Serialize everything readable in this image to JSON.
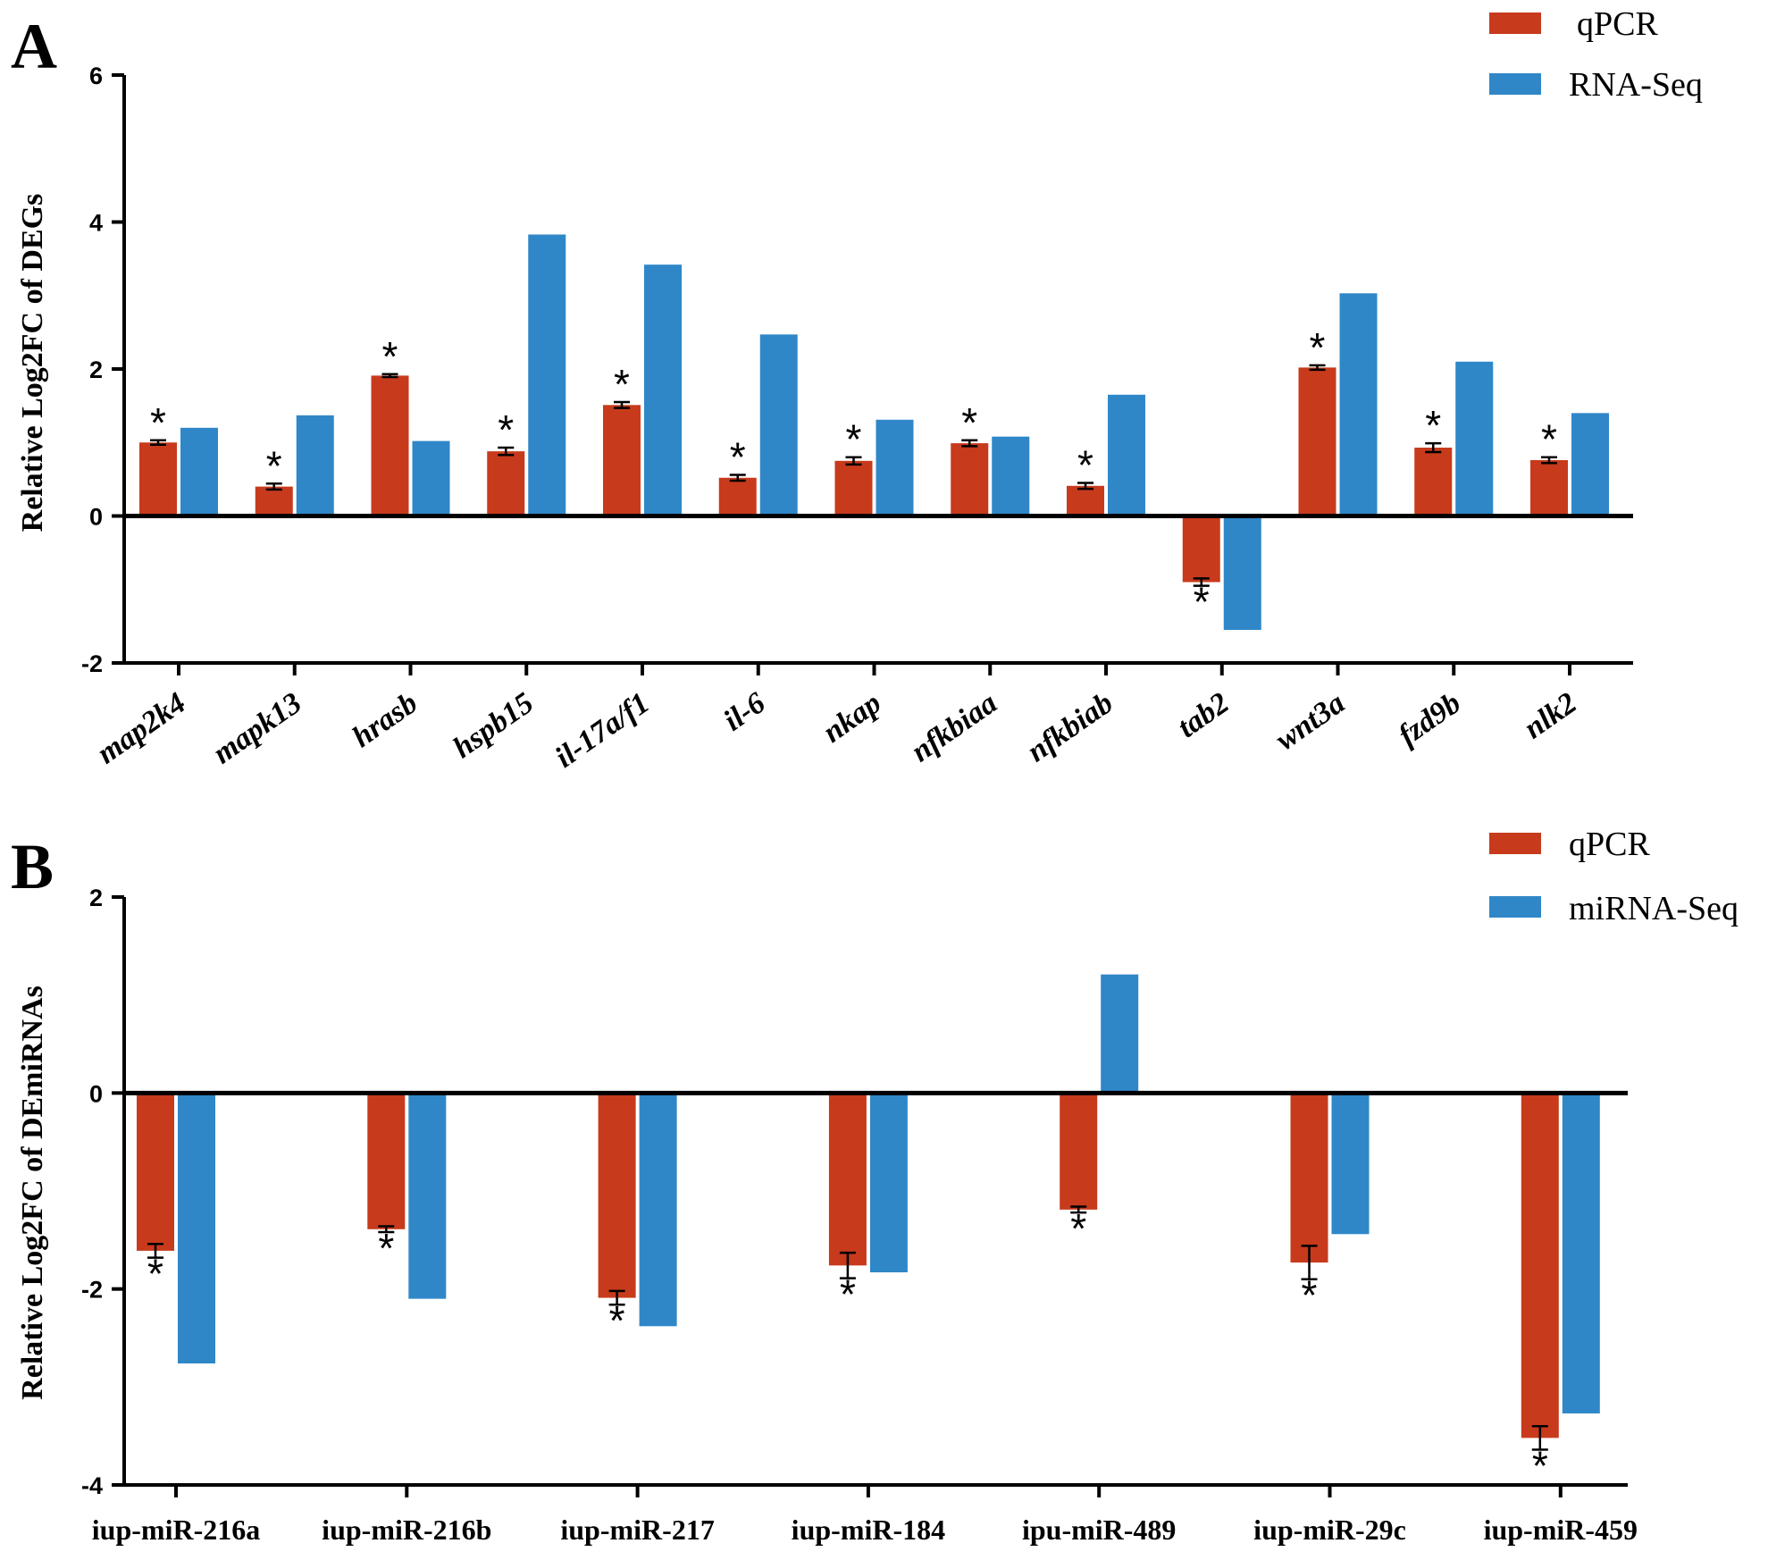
{
  "colors": {
    "qpcr": "#c73a1c",
    "seq": "#2f87c8",
    "axis": "#000000"
  },
  "chart_data": [
    {
      "panel": "A",
      "type": "bar",
      "title": "",
      "ylabel": "Relative Log2FC of DEGs",
      "xlabel": "",
      "ylim": [
        -2,
        6
      ],
      "yticks": [
        -2,
        0,
        2,
        4,
        6
      ],
      "tick_labels": [
        "-2",
        "0",
        "2",
        "4",
        "6"
      ],
      "legend": [
        "qPCR",
        "RNA-Seq"
      ],
      "significance_marker": "*",
      "categories": [
        "map2k4",
        "mapk13",
        "hrasb",
        "hspb15",
        "il-17a/f1",
        "il-6",
        "nkap",
        "nfkbiaa",
        "nfkbiab",
        "tab2",
        "wnt3a",
        "fzd9b",
        "nlk2"
      ],
      "series": [
        {
          "name": "qPCR",
          "values": [
            1.0,
            0.4,
            1.91,
            0.88,
            1.51,
            0.52,
            0.75,
            0.99,
            0.41,
            -0.9,
            2.02,
            0.93,
            0.76
          ],
          "errors": [
            0.03,
            0.04,
            0.02,
            0.05,
            0.04,
            0.04,
            0.05,
            0.04,
            0.04,
            0.05,
            0.03,
            0.06,
            0.04
          ]
        },
        {
          "name": "RNA-Seq",
          "values": [
            1.2,
            1.37,
            1.02,
            3.83,
            3.42,
            2.47,
            1.31,
            1.08,
            1.65,
            -1.55,
            3.03,
            2.1,
            1.4
          ]
        }
      ]
    },
    {
      "panel": "B",
      "type": "bar",
      "title": "",
      "ylabel": "Relative Log2FC of DEmiRNAs",
      "xlabel": "",
      "ylim": [
        -4,
        2
      ],
      "yticks": [
        -4,
        -2,
        0,
        2
      ],
      "tick_labels": [
        "-4",
        "-2",
        "0",
        "2"
      ],
      "legend": [
        "qPCR",
        "miRNA-Seq"
      ],
      "significance_marker": "*",
      "categories": [
        "iup-miR-216a",
        "iup-miR-216b",
        "iup-miR-217",
        "iup-miR-184",
        "ipu-miR-489",
        "iup-miR-29c",
        "iup-miR-459"
      ],
      "series": [
        {
          "name": "qPCR",
          "values": [
            -1.61,
            -1.39,
            -2.09,
            -1.76,
            -1.19,
            -1.73,
            -3.52
          ],
          "errors": [
            0.07,
            0.03,
            0.07,
            0.13,
            0.03,
            0.17,
            0.12
          ]
        },
        {
          "name": "miRNA-Seq",
          "values": [
            -2.76,
            -2.1,
            -2.38,
            -1.83,
            1.21,
            -1.44,
            -3.27
          ]
        }
      ]
    }
  ]
}
